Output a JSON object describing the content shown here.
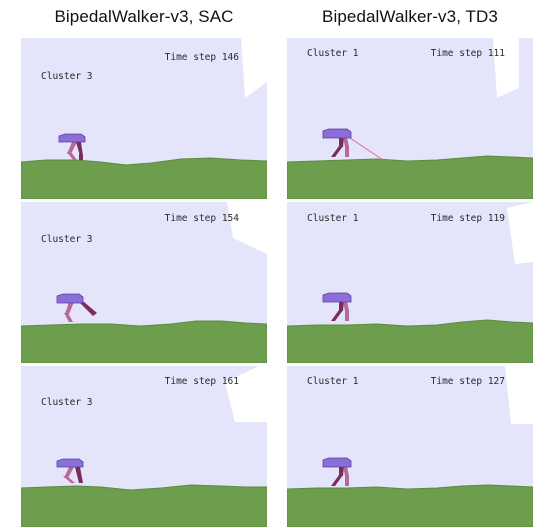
{
  "columns": [
    {
      "title": "BipedalWalker-v3, SAC",
      "frames": [
        {
          "cluster_label": "Cluster 3",
          "timestep_label": "Time step 146"
        },
        {
          "cluster_label": "Cluster 3",
          "timestep_label": "Time step 154"
        },
        {
          "cluster_label": "Cluster 3",
          "timestep_label": "Time step 161"
        }
      ]
    },
    {
      "title": "BipedalWalker-v3, TD3",
      "frames": [
        {
          "cluster_label": "Cluster 1",
          "timestep_label": "Time step 111"
        },
        {
          "cluster_label": "Cluster 1",
          "timestep_label": "Time step 119"
        },
        {
          "cluster_label": "Cluster 1",
          "timestep_label": "Time step 127"
        }
      ]
    }
  ],
  "colors": {
    "sky": "#e4e4fa",
    "ground": "#6c9e4e",
    "ground_edge": "#5c8c40",
    "hull": "#8b6fd6",
    "hull_edge": "#5a3fa8",
    "leg_front": "#b56a98",
    "leg_back": "#7a2c5a",
    "lidar": "#e06080",
    "sign": "#ffffff"
  }
}
